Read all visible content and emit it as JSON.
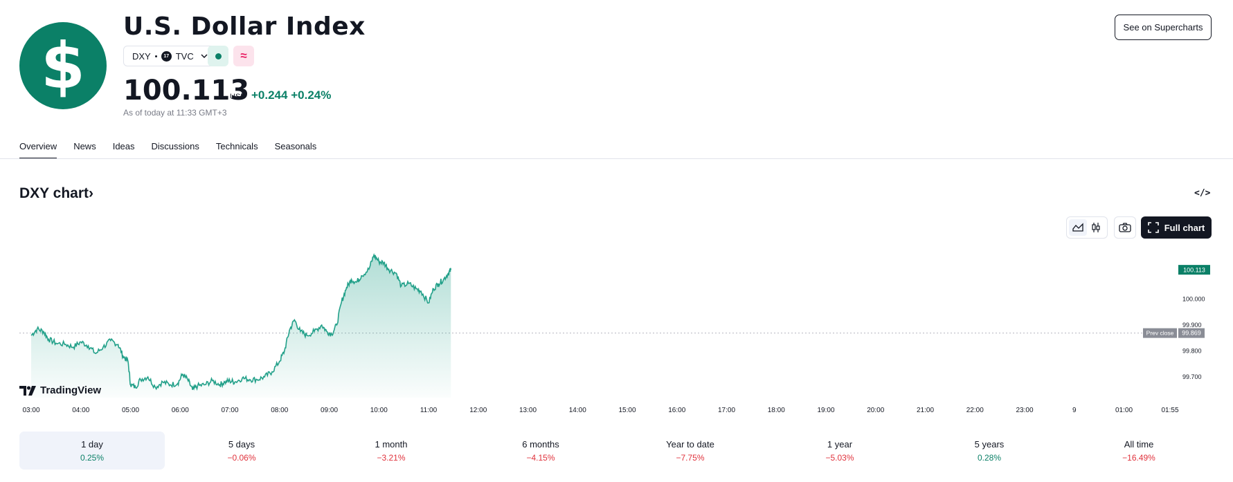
{
  "header": {
    "logo_symbol": "$",
    "title": "U.S. Dollar Index",
    "symbol": "DXY",
    "exchange_badge": "17",
    "exchange": "TVC",
    "price": "100.113",
    "currency": "USD",
    "change_abs": "+0.244",
    "change_pct": "+0.24%",
    "as_of": "As of today at 11:33 GMT+3",
    "supercharts_label": "See on Supercharts",
    "wave_symbol": "≈"
  },
  "tabs": [
    {
      "label": "Overview",
      "active": true
    },
    {
      "label": "News"
    },
    {
      "label": "Ideas"
    },
    {
      "label": "Discussions"
    },
    {
      "label": "Technicals"
    },
    {
      "label": "Seasonals"
    }
  ],
  "chart_section": {
    "title": "DXY chart",
    "title_arrow": "›",
    "embed_symbol": "</>",
    "full_chart_label": "Full chart",
    "watermark": "TradingView"
  },
  "chart_data": {
    "type": "area",
    "x_ticks": [
      "03:00",
      "04:00",
      "05:00",
      "06:00",
      "07:00",
      "08:00",
      "09:00",
      "10:00",
      "11:00",
      "12:00",
      "13:00",
      "14:00",
      "15:00",
      "16:00",
      "17:00",
      "18:00",
      "19:00",
      "20:00",
      "21:00",
      "22:00",
      "23:00",
      "9",
      "01:00",
      "01:55"
    ],
    "y_ticks": [
      "99.700",
      "99.800",
      "99.900",
      "100.000"
    ],
    "ylim": [
      99.62,
      100.22
    ],
    "last_value": "100.113",
    "prev_close_label": "Prev close",
    "prev_close_value": "99.869",
    "prev_close": 99.869,
    "series": [
      {
        "x": 0.0,
        "y": 99.86
      },
      {
        "x": 0.12,
        "y": 99.885
      },
      {
        "x": 0.25,
        "y": 99.875
      },
      {
        "x": 0.35,
        "y": 99.845
      },
      {
        "x": 0.5,
        "y": 99.83
      },
      {
        "x": 0.7,
        "y": 99.825
      },
      {
        "x": 0.85,
        "y": 99.815
      },
      {
        "x": 1.0,
        "y": 99.835
      },
      {
        "x": 1.15,
        "y": 99.82
      },
      {
        "x": 1.3,
        "y": 99.79
      },
      {
        "x": 1.45,
        "y": 99.815
      },
      {
        "x": 1.6,
        "y": 99.84
      },
      {
        "x": 1.75,
        "y": 99.825
      },
      {
        "x": 1.85,
        "y": 99.78
      },
      {
        "x": 1.95,
        "y": 99.76
      },
      {
        "x": 2.0,
        "y": 99.67
      },
      {
        "x": 2.1,
        "y": 99.66
      },
      {
        "x": 2.2,
        "y": 99.69
      },
      {
        "x": 2.35,
        "y": 99.7
      },
      {
        "x": 2.5,
        "y": 99.66
      },
      {
        "x": 2.65,
        "y": 99.68
      },
      {
        "x": 2.8,
        "y": 99.67
      },
      {
        "x": 2.95,
        "y": 99.675
      },
      {
        "x": 3.05,
        "y": 99.71
      },
      {
        "x": 3.15,
        "y": 99.69
      },
      {
        "x": 3.25,
        "y": 99.65
      },
      {
        "x": 3.35,
        "y": 99.665
      },
      {
        "x": 3.5,
        "y": 99.67
      },
      {
        "x": 3.65,
        "y": 99.685
      },
      {
        "x": 3.8,
        "y": 99.67
      },
      {
        "x": 3.9,
        "y": 99.68
      },
      {
        "x": 4.0,
        "y": 99.685
      },
      {
        "x": 4.1,
        "y": 99.68
      },
      {
        "x": 4.25,
        "y": 99.695
      },
      {
        "x": 4.4,
        "y": 99.69
      },
      {
        "x": 4.55,
        "y": 99.69
      },
      {
        "x": 4.7,
        "y": 99.7
      },
      {
        "x": 4.85,
        "y": 99.72
      },
      {
        "x": 5.0,
        "y": 99.76
      },
      {
        "x": 5.1,
        "y": 99.8
      },
      {
        "x": 5.2,
        "y": 99.88
      },
      {
        "x": 5.3,
        "y": 99.92
      },
      {
        "x": 5.42,
        "y": 99.875
      },
      {
        "x": 5.55,
        "y": 99.86
      },
      {
        "x": 5.7,
        "y": 99.875
      },
      {
        "x": 5.85,
        "y": 99.9
      },
      {
        "x": 5.95,
        "y": 99.875
      },
      {
        "x": 6.05,
        "y": 99.865
      },
      {
        "x": 6.15,
        "y": 99.9
      },
      {
        "x": 6.25,
        "y": 99.99
      },
      {
        "x": 6.35,
        "y": 100.045
      },
      {
        "x": 6.45,
        "y": 100.075
      },
      {
        "x": 6.55,
        "y": 100.065
      },
      {
        "x": 6.65,
        "y": 100.09
      },
      {
        "x": 6.8,
        "y": 100.115
      },
      {
        "x": 6.9,
        "y": 100.17
      },
      {
        "x": 7.0,
        "y": 100.145
      },
      {
        "x": 7.1,
        "y": 100.14
      },
      {
        "x": 7.2,
        "y": 100.115
      },
      {
        "x": 7.35,
        "y": 100.1
      },
      {
        "x": 7.45,
        "y": 100.05
      },
      {
        "x": 7.6,
        "y": 100.06
      },
      {
        "x": 7.75,
        "y": 100.04
      },
      {
        "x": 7.85,
        "y": 100.03
      },
      {
        "x": 8.0,
        "y": 99.985
      },
      {
        "x": 8.1,
        "y": 100.04
      },
      {
        "x": 8.2,
        "y": 100.06
      },
      {
        "x": 8.3,
        "y": 100.075
      },
      {
        "x": 8.4,
        "y": 100.1
      },
      {
        "x": 8.45,
        "y": 100.113
      }
    ]
  },
  "periods": [
    {
      "label": "1 day",
      "value": "0.25%",
      "sign": "pos",
      "active": true
    },
    {
      "label": "5 days",
      "value": "−0.06%",
      "sign": "neg"
    },
    {
      "label": "1 month",
      "value": "−3.21%",
      "sign": "neg"
    },
    {
      "label": "6 months",
      "value": "−4.15%",
      "sign": "neg"
    },
    {
      "label": "Year to date",
      "value": "−7.75%",
      "sign": "neg"
    },
    {
      "label": "1 year",
      "value": "−5.03%",
      "sign": "neg"
    },
    {
      "label": "5 years",
      "value": "0.28%",
      "sign": "pos"
    },
    {
      "label": "All time",
      "value": "−16.49%",
      "sign": "neg"
    }
  ],
  "colors": {
    "accent_green": "#0b8067",
    "line_green": "#22a089",
    "negative_red": "#e0323c",
    "dark": "#131722"
  }
}
